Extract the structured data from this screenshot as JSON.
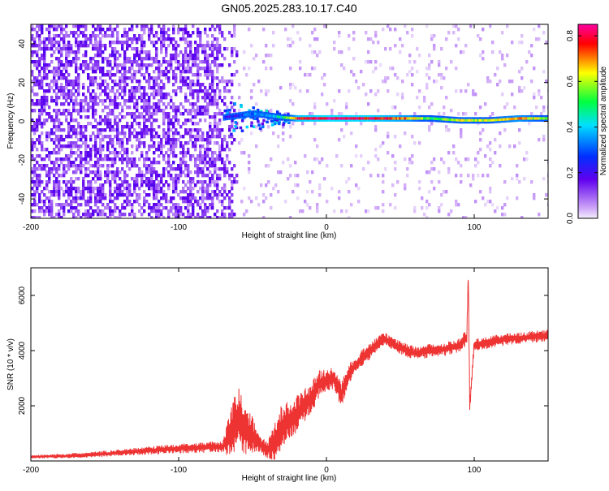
{
  "page": {
    "title": "GN05.2025.283.10.17.C40"
  },
  "chart_data": [
    {
      "type": "heatmap",
      "title": "GN05.2025.283.10.17.C40",
      "xlabel": "Height of straight line (km)",
      "ylabel": "Frequency (Hz)",
      "xlim": [
        -200,
        150
      ],
      "ylim": [
        -50,
        50
      ],
      "x_ticks": [
        -200,
        -100,
        0,
        100
      ],
      "x_tick_labels": [
        "-200",
        "-100",
        "0",
        "100"
      ],
      "y_ticks": [
        -40,
        -20,
        0,
        20,
        40
      ],
      "y_tick_labels": [
        "-40",
        "-20",
        "0",
        "20",
        "40"
      ],
      "colorbar": {
        "label": "Normalized spectral amplitude",
        "range": [
          0,
          0.85
        ],
        "ticks": [
          0,
          0.2,
          0.4,
          0.6,
          0.8
        ],
        "tick_labels": [
          "0.0",
          "0.2",
          "0.4",
          "0.6",
          "0.8"
        ],
        "colormap": [
          "#f4eefc",
          "#6000ee",
          "#0030ff",
          "#00e0ff",
          "#00ff40",
          "#ffff00",
          "#ff0000",
          "#ff00a0"
        ]
      },
      "regions": [
        {
          "name": "noise",
          "x_range": [
            -200,
            -70
          ],
          "freq_range": [
            -50,
            50
          ],
          "amplitude": 0.08
        },
        {
          "name": "faint",
          "x_range": [
            -70,
            150
          ],
          "freq_range": [
            -50,
            50
          ],
          "amplitude": 0.02
        }
      ],
      "ridge": {
        "points": [
          {
            "x": -70,
            "freq": 2,
            "amplitude": 0.18
          },
          {
            "x": -60,
            "freq": 3,
            "amplitude": 0.26
          },
          {
            "x": -50,
            "freq": 4,
            "amplitude": 0.34
          },
          {
            "x": -40,
            "freq": 3,
            "amplitude": 0.38
          },
          {
            "x": -30,
            "freq": 2,
            "amplitude": 0.45
          },
          {
            "x": -20,
            "freq": 1.5,
            "amplitude": 0.78
          },
          {
            "x": 0,
            "freq": 1.5,
            "amplitude": 0.82
          },
          {
            "x": 30,
            "freq": 1.5,
            "amplitude": 0.8
          },
          {
            "x": 55,
            "freq": 1.5,
            "amplitude": 0.7
          },
          {
            "x": 70,
            "freq": 1.5,
            "amplitude": 0.5
          },
          {
            "x": 90,
            "freq": 0.5,
            "amplitude": 0.62
          },
          {
            "x": 110,
            "freq": 0.5,
            "amplitude": 0.6
          },
          {
            "x": 130,
            "freq": 1.5,
            "amplitude": 0.7
          },
          {
            "x": 150,
            "freq": 1.5,
            "amplitude": 0.55
          }
        ]
      }
    },
    {
      "type": "line",
      "xlabel": "Height of straight line (km)",
      "ylabel": "SNR (10 * v/v)",
      "xlim": [
        -200,
        150
      ],
      "ylim": [
        0,
        7000
      ],
      "x_ticks": [
        -200,
        -100,
        0,
        100
      ],
      "x_tick_labels": [
        "-200",
        "-100",
        "0",
        "100"
      ],
      "y_ticks": [
        2000,
        4000,
        6000
      ],
      "y_tick_labels": [
        "2000",
        "4000",
        "6000"
      ],
      "series": [
        {
          "name": "SNR",
          "color": "#ee3333",
          "x": [
            -200,
            -180,
            -160,
            -140,
            -120,
            -100,
            -80,
            -70,
            -65,
            -60,
            -55,
            -50,
            -45,
            -40,
            -35,
            -30,
            -25,
            -20,
            -15,
            -10,
            -5,
            0,
            5,
            10,
            15,
            20,
            25,
            30,
            35,
            40,
            50,
            60,
            70,
            80,
            90,
            95,
            96,
            97,
            100,
            110,
            120,
            130,
            140,
            150
          ],
          "y": [
            150,
            180,
            220,
            300,
            380,
            450,
            500,
            520,
            1000,
            1500,
            1200,
            900,
            600,
            400,
            700,
            1200,
            1500,
            1700,
            2000,
            2300,
            2800,
            2900,
            3000,
            2400,
            3100,
            3500,
            3800,
            4000,
            4300,
            4400,
            4100,
            3900,
            4000,
            4050,
            4200,
            4500,
            6800,
            2000,
            4200,
            4300,
            4400,
            4450,
            4500,
            4550
          ],
          "noise": [
            60,
            80,
            100,
            120,
            150,
            180,
            200,
            200,
            900,
            1200,
            1000,
            700,
            300,
            300,
            700,
            900,
            700,
            700,
            600,
            600,
            500,
            400,
            400,
            500,
            400,
            300,
            300,
            300,
            250,
            250,
            250,
            250,
            250,
            250,
            250,
            300,
            300,
            300,
            250,
            220,
            220,
            220,
            220,
            220
          ]
        }
      ]
    }
  ]
}
